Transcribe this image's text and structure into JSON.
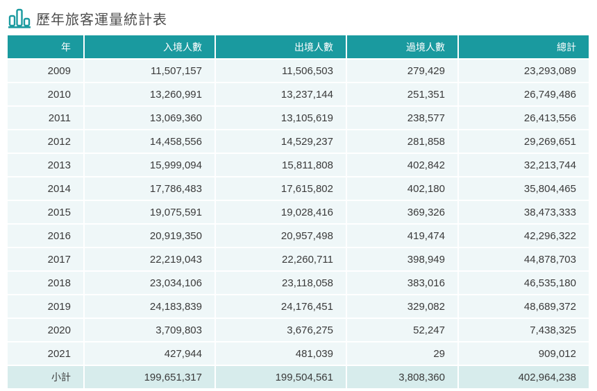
{
  "header": {
    "title": "歷年旅客運量統計表",
    "icon": "bar-chart-icon",
    "accent_color": "#1a9a9f"
  },
  "table": {
    "columns": [
      "年",
      "入境人數",
      "出境人數",
      "過境人數",
      "總計"
    ],
    "rows": [
      [
        "2009",
        "11,507,157",
        "11,506,503",
        "279,429",
        "23,293,089"
      ],
      [
        "2010",
        "13,260,991",
        "13,237,144",
        "251,351",
        "26,749,486"
      ],
      [
        "2011",
        "13,069,360",
        "13,105,619",
        "238,577",
        "26,413,556"
      ],
      [
        "2012",
        "14,458,556",
        "14,529,237",
        "281,858",
        "29,269,651"
      ],
      [
        "2013",
        "15,999,094",
        "15,811,808",
        "402,842",
        "32,213,744"
      ],
      [
        "2014",
        "17,786,483",
        "17,615,802",
        "402,180",
        "35,804,465"
      ],
      [
        "2015",
        "19,075,591",
        "19,028,416",
        "369,326",
        "38,473,333"
      ],
      [
        "2016",
        "20,919,350",
        "20,957,498",
        "419,474",
        "42,296,322"
      ],
      [
        "2017",
        "22,219,043",
        "22,260,711",
        "398,949",
        "44,878,703"
      ],
      [
        "2018",
        "23,034,106",
        "23,118,058",
        "383,016",
        "46,535,180"
      ],
      [
        "2019",
        "24,183,839",
        "24,176,451",
        "329,082",
        "48,689,372"
      ],
      [
        "2020",
        "3,709,803",
        "3,676,275",
        "52,247",
        "7,438,325"
      ],
      [
        "2021",
        "427,944",
        "481,039",
        "29",
        "909,012"
      ]
    ],
    "subtotal": [
      "小計",
      "199,651,317",
      "199,504,561",
      "3,808,360",
      "402,964,238"
    ]
  }
}
